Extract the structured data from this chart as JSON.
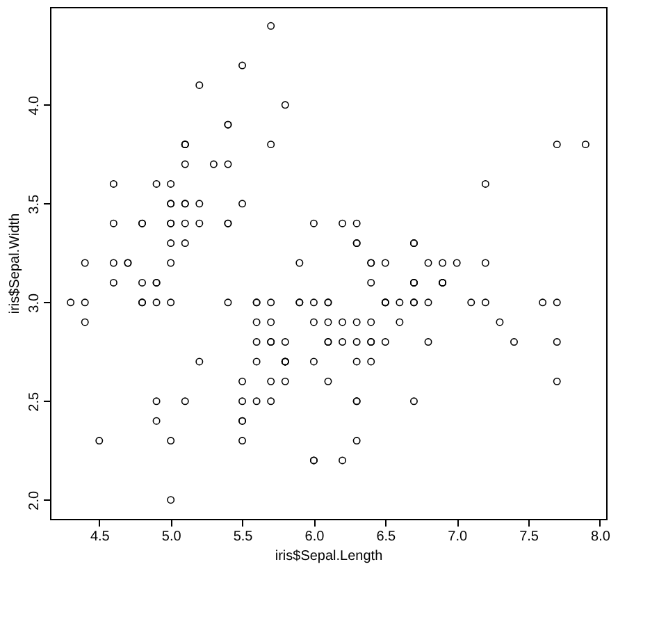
{
  "chart_data": {
    "type": "scatter",
    "xlabel": "iris$Sepal.Length",
    "ylabel": "iris$Sepal.Width",
    "x": [
      5.1,
      4.9,
      4.7,
      4.6,
      5.0,
      5.4,
      4.6,
      5.0,
      4.4,
      4.9,
      5.4,
      4.8,
      4.8,
      4.3,
      5.8,
      5.7,
      5.4,
      5.1,
      5.7,
      5.1,
      5.4,
      5.1,
      4.6,
      5.1,
      4.8,
      5.0,
      5.0,
      5.2,
      5.2,
      4.7,
      4.8,
      5.4,
      5.2,
      5.5,
      4.9,
      5.0,
      5.5,
      4.9,
      4.4,
      5.1,
      5.0,
      4.5,
      4.4,
      5.0,
      5.1,
      4.8,
      5.1,
      4.6,
      5.3,
      5.0,
      7.0,
      6.4,
      6.9,
      5.5,
      6.5,
      5.7,
      6.3,
      4.9,
      6.6,
      5.2,
      5.0,
      5.9,
      6.0,
      6.1,
      5.6,
      6.7,
      5.6,
      5.8,
      6.2,
      5.6,
      5.9,
      6.1,
      6.3,
      6.1,
      6.4,
      6.6,
      6.8,
      6.7,
      6.0,
      5.7,
      5.5,
      5.5,
      5.8,
      6.0,
      5.4,
      6.0,
      6.7,
      6.3,
      5.6,
      5.5,
      5.5,
      6.1,
      5.8,
      5.0,
      5.6,
      5.7,
      5.7,
      6.2,
      5.1,
      5.7,
      6.3,
      5.8,
      7.1,
      6.3,
      6.5,
      7.6,
      4.9,
      7.3,
      6.7,
      7.2,
      6.5,
      6.4,
      6.8,
      5.7,
      5.8,
      6.4,
      6.5,
      7.7,
      7.7,
      6.0,
      6.9,
      5.6,
      7.7,
      6.3,
      6.7,
      7.2,
      6.2,
      6.1,
      6.4,
      7.2,
      7.4,
      7.9,
      6.4,
      6.3,
      6.1,
      7.7,
      6.3,
      6.4,
      6.0,
      6.9,
      6.7,
      6.9,
      5.8,
      6.8,
      6.7,
      6.7,
      6.3,
      6.5,
      6.2,
      5.9
    ],
    "series": [
      {
        "color": "#000000",
        "values": [
          3.5,
          3.0,
          3.2,
          3.1,
          3.6,
          3.9,
          3.4,
          3.4,
          2.9,
          3.1,
          3.7,
          3.4,
          3.0,
          3.0,
          4.0,
          4.4,
          3.9,
          3.5,
          3.8,
          3.8,
          3.4,
          3.7,
          3.6,
          3.3,
          3.4,
          3.0,
          3.4,
          3.5,
          3.4,
          3.2,
          3.1,
          3.4,
          4.1,
          4.2,
          3.1,
          3.2,
          3.5,
          3.6,
          3.0,
          3.4,
          3.5,
          2.3,
          3.2,
          3.5,
          3.8,
          3.0,
          3.8,
          3.2,
          3.7,
          3.3,
          3.2,
          3.2,
          3.1,
          2.3,
          2.8,
          2.8,
          3.3,
          2.4,
          2.9,
          2.7,
          2.0,
          3.0,
          2.2,
          2.9,
          2.9,
          3.1,
          3.0,
          2.7,
          2.2,
          2.5,
          3.2,
          2.8,
          2.5,
          2.8,
          2.9,
          3.0,
          2.8,
          3.0,
          2.9,
          2.6,
          2.4,
          2.4,
          2.7,
          2.7,
          3.0,
          3.4,
          3.1,
          2.3,
          3.0,
          2.5,
          2.6,
          3.0,
          2.6,
          2.3,
          2.7,
          3.0,
          2.9,
          2.9,
          2.5,
          2.8,
          3.3,
          2.7,
          3.0,
          2.9,
          3.0,
          3.0,
          2.5,
          2.9,
          2.5,
          3.6,
          3.2,
          2.7,
          3.0,
          2.5,
          2.8,
          3.2,
          3.0,
          3.8,
          2.6,
          2.2,
          3.2,
          2.8,
          2.8,
          2.7,
          3.3,
          3.2,
          2.8,
          3.0,
          2.8,
          3.0,
          2.8,
          3.8,
          2.8,
          2.8,
          2.6,
          3.0,
          3.4,
          3.1,
          3.0,
          3.1,
          3.1,
          3.1,
          2.7,
          3.2,
          3.3,
          3.0,
          2.5,
          3.0,
          3.4,
          3.0
        ]
      }
    ],
    "xlim": [
      4.156,
      8.044
    ],
    "ylim": [
      1.904,
      4.496
    ],
    "xticks": [
      4.5,
      {
        "value": 5,
        "label": "5.0"
      },
      5.5,
      {
        "value": 6,
        "label": "6.0"
      },
      6.5,
      {
        "value": 7,
        "label": "7.0"
      },
      7.5,
      {
        "value": 8,
        "label": "8.0"
      }
    ],
    "yticks": [
      {
        "value": 2,
        "label": "2.0"
      },
      2.5,
      {
        "value": 3,
        "label": "3.0"
      },
      3.5,
      {
        "value": 4,
        "label": "4.0"
      }
    ],
    "marker": "circle",
    "grid": false
  }
}
